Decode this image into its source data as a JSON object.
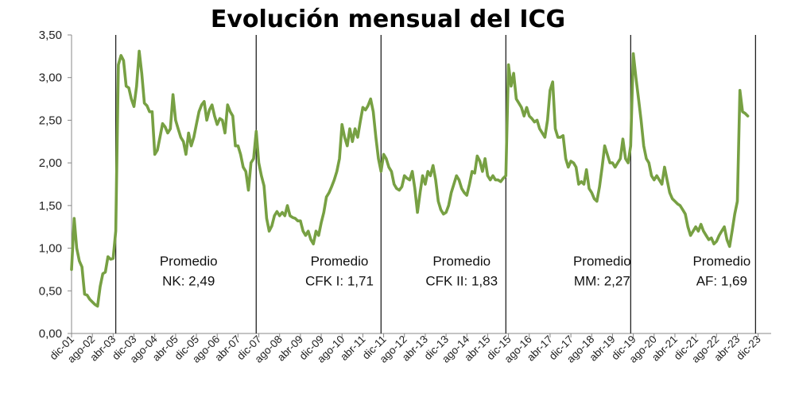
{
  "chart_data": {
    "type": "line",
    "title": "Evolución mensual del ICG",
    "xlabel": "",
    "ylabel": "",
    "ylim": [
      0,
      3.5
    ],
    "grid": false,
    "line_color": "#77a043",
    "divider_color": "#222222",
    "y_ticks": [
      "0,00",
      "0,50",
      "1,00",
      "1,50",
      "2,00",
      "2,50",
      "3,00",
      "3,50"
    ],
    "y_tick_values": [
      0,
      0.5,
      1,
      1.5,
      2,
      2.5,
      3,
      3.5
    ],
    "x_ticks": [
      {
        "label": "dic-01",
        "index": 0
      },
      {
        "label": "ago-02",
        "index": 8
      },
      {
        "label": "abr-03",
        "index": 16
      },
      {
        "label": "dic-03",
        "index": 24
      },
      {
        "label": "ago-04",
        "index": 32
      },
      {
        "label": "abr-05",
        "index": 40
      },
      {
        "label": "dic-05",
        "index": 48
      },
      {
        "label": "ago-06",
        "index": 56
      },
      {
        "label": "abr-07",
        "index": 64
      },
      {
        "label": "dic-07",
        "index": 72
      },
      {
        "label": "ago-08",
        "index": 80
      },
      {
        "label": "abr-09",
        "index": 88
      },
      {
        "label": "dic-09",
        "index": 96
      },
      {
        "label": "ago-10",
        "index": 104
      },
      {
        "label": "abr-11",
        "index": 112
      },
      {
        "label": "dic-11",
        "index": 120
      },
      {
        "label": "ago-12",
        "index": 128
      },
      {
        "label": "abr-13",
        "index": 136
      },
      {
        "label": "dic-13",
        "index": 144
      },
      {
        "label": "ago-14",
        "index": 152
      },
      {
        "label": "abr-15",
        "index": 160
      },
      {
        "label": "dic-15",
        "index": 168
      },
      {
        "label": "ago-16",
        "index": 176
      },
      {
        "label": "abr-17",
        "index": 184
      },
      {
        "label": "dic-17",
        "index": 192
      },
      {
        "label": "ago-18",
        "index": 200
      },
      {
        "label": "abr-19",
        "index": 208
      },
      {
        "label": "dic-19",
        "index": 216
      },
      {
        "label": "ago-20",
        "index": 224
      },
      {
        "label": "abr-21",
        "index": 232
      },
      {
        "label": "dic-21",
        "index": 240
      },
      {
        "label": "ago-22",
        "index": 248
      },
      {
        "label": "abr-23",
        "index": 256
      },
      {
        "label": "dic-23",
        "index": 264
      }
    ],
    "x_max_index": 269,
    "dividers": [
      17,
      71,
      119,
      167,
      215,
      263
    ],
    "annotations": [
      {
        "line1": "Promedio",
        "line2": "NK: 2,49",
        "center_index": 45
      },
      {
        "line1": "Promedio",
        "line2": "CFK I: 1,71",
        "center_index": 103
      },
      {
        "line1": "Promedio",
        "line2": "CFK II: 1,83",
        "center_index": 150
      },
      {
        "line1": "Promedio",
        "line2": "MM: 2,27",
        "center_index": 204
      },
      {
        "line1": "Promedio",
        "line2": "AF: 1,69",
        "center_index": 250
      }
    ],
    "annotation_y": [
      0.85,
      0.62
    ],
    "series": [
      {
        "name": "ICG",
        "points": [
          [
            0,
            0.75
          ],
          [
            1,
            1.35
          ],
          [
            2,
            1.0
          ],
          [
            3,
            0.85
          ],
          [
            4,
            0.78
          ],
          [
            5,
            0.46
          ],
          [
            6,
            0.45
          ],
          [
            7,
            0.4
          ],
          [
            8,
            0.37
          ],
          [
            9,
            0.34
          ],
          [
            10,
            0.32
          ],
          [
            11,
            0.55
          ],
          [
            12,
            0.7
          ],
          [
            13,
            0.72
          ],
          [
            14,
            0.9
          ],
          [
            15,
            0.87
          ],
          [
            16,
            0.88
          ],
          [
            17,
            1.2
          ],
          [
            18,
            3.15
          ],
          [
            19,
            3.26
          ],
          [
            20,
            3.2
          ],
          [
            21,
            2.9
          ],
          [
            22,
            2.88
          ],
          [
            23,
            2.75
          ],
          [
            24,
            2.66
          ],
          [
            25,
            2.9
          ],
          [
            26,
            3.31
          ],
          [
            27,
            3.05
          ],
          [
            28,
            2.7
          ],
          [
            29,
            2.67
          ],
          [
            30,
            2.6
          ],
          [
            31,
            2.6
          ],
          [
            32,
            2.1
          ],
          [
            33,
            2.15
          ],
          [
            34,
            2.3
          ],
          [
            35,
            2.46
          ],
          [
            36,
            2.42
          ],
          [
            37,
            2.35
          ],
          [
            38,
            2.4
          ],
          [
            39,
            2.8
          ],
          [
            40,
            2.5
          ],
          [
            41,
            2.4
          ],
          [
            42,
            2.3
          ],
          [
            43,
            2.25
          ],
          [
            44,
            2.1
          ],
          [
            45,
            2.35
          ],
          [
            46,
            2.2
          ],
          [
            47,
            2.3
          ],
          [
            48,
            2.45
          ],
          [
            49,
            2.6
          ],
          [
            50,
            2.68
          ],
          [
            51,
            2.72
          ],
          [
            52,
            2.5
          ],
          [
            53,
            2.62
          ],
          [
            54,
            2.68
          ],
          [
            55,
            2.55
          ],
          [
            56,
            2.45
          ],
          [
            57,
            2.52
          ],
          [
            58,
            2.5
          ],
          [
            59,
            2.35
          ],
          [
            60,
            2.68
          ],
          [
            61,
            2.6
          ],
          [
            62,
            2.55
          ],
          [
            63,
            2.2
          ],
          [
            64,
            2.2
          ],
          [
            65,
            2.1
          ],
          [
            66,
            1.95
          ],
          [
            67,
            1.9
          ],
          [
            68,
            1.68
          ],
          [
            69,
            2.0
          ],
          [
            70,
            2.05
          ],
          [
            71,
            2.37
          ],
          [
            72,
            2.0
          ],
          [
            73,
            1.85
          ],
          [
            74,
            1.73
          ],
          [
            75,
            1.35
          ],
          [
            76,
            1.2
          ],
          [
            77,
            1.26
          ],
          [
            78,
            1.38
          ],
          [
            79,
            1.43
          ],
          [
            80,
            1.38
          ],
          [
            81,
            1.42
          ],
          [
            82,
            1.38
          ],
          [
            83,
            1.5
          ],
          [
            84,
            1.38
          ],
          [
            85,
            1.36
          ],
          [
            86,
            1.35
          ],
          [
            87,
            1.32
          ],
          [
            88,
            1.32
          ],
          [
            89,
            1.2
          ],
          [
            90,
            1.15
          ],
          [
            91,
            1.2
          ],
          [
            92,
            1.1
          ],
          [
            93,
            1.05
          ],
          [
            94,
            1.2
          ],
          [
            95,
            1.15
          ],
          [
            96,
            1.3
          ],
          [
            97,
            1.42
          ],
          [
            98,
            1.6
          ],
          [
            99,
            1.65
          ],
          [
            100,
            1.72
          ],
          [
            101,
            1.8
          ],
          [
            102,
            1.9
          ],
          [
            103,
            2.05
          ],
          [
            104,
            2.45
          ],
          [
            105,
            2.3
          ],
          [
            106,
            2.2
          ],
          [
            107,
            2.4
          ],
          [
            108,
            2.25
          ],
          [
            109,
            2.4
          ],
          [
            110,
            2.3
          ],
          [
            111,
            2.48
          ],
          [
            112,
            2.65
          ],
          [
            113,
            2.62
          ],
          [
            114,
            2.67
          ],
          [
            115,
            2.75
          ],
          [
            116,
            2.6
          ],
          [
            117,
            2.3
          ],
          [
            118,
            2.05
          ],
          [
            119,
            1.9
          ],
          [
            120,
            2.1
          ],
          [
            121,
            2.05
          ],
          [
            122,
            1.95
          ],
          [
            123,
            1.9
          ],
          [
            124,
            1.75
          ],
          [
            125,
            1.7
          ],
          [
            126,
            1.68
          ],
          [
            127,
            1.72
          ],
          [
            128,
            1.85
          ],
          [
            129,
            1.82
          ],
          [
            130,
            1.8
          ],
          [
            131,
            1.9
          ],
          [
            132,
            1.7
          ],
          [
            133,
            1.42
          ],
          [
            134,
            1.65
          ],
          [
            135,
            1.85
          ],
          [
            136,
            1.75
          ],
          [
            137,
            1.9
          ],
          [
            138,
            1.85
          ],
          [
            139,
            1.97
          ],
          [
            140,
            1.8
          ],
          [
            141,
            1.55
          ],
          [
            142,
            1.45
          ],
          [
            143,
            1.4
          ],
          [
            144,
            1.42
          ],
          [
            145,
            1.5
          ],
          [
            146,
            1.65
          ],
          [
            147,
            1.75
          ],
          [
            148,
            1.85
          ],
          [
            149,
            1.8
          ],
          [
            150,
            1.7
          ],
          [
            151,
            1.65
          ],
          [
            152,
            1.62
          ],
          [
            153,
            1.75
          ],
          [
            154,
            1.9
          ],
          [
            155,
            1.88
          ],
          [
            156,
            2.08
          ],
          [
            157,
            2.02
          ],
          [
            158,
            1.9
          ],
          [
            159,
            2.05
          ],
          [
            160,
            1.85
          ],
          [
            161,
            1.8
          ],
          [
            162,
            1.85
          ],
          [
            163,
            1.8
          ],
          [
            164,
            1.8
          ],
          [
            165,
            1.78
          ],
          [
            166,
            1.82
          ],
          [
            167,
            1.85
          ],
          [
            168,
            3.15
          ],
          [
            169,
            2.9
          ],
          [
            170,
            3.05
          ],
          [
            171,
            2.75
          ],
          [
            172,
            2.7
          ],
          [
            173,
            2.65
          ],
          [
            174,
            2.55
          ],
          [
            175,
            2.65
          ],
          [
            176,
            2.55
          ],
          [
            177,
            2.52
          ],
          [
            178,
            2.48
          ],
          [
            179,
            2.5
          ],
          [
            180,
            2.4
          ],
          [
            181,
            2.35
          ],
          [
            182,
            2.3
          ],
          [
            183,
            2.5
          ],
          [
            184,
            2.85
          ],
          [
            185,
            2.95
          ],
          [
            186,
            2.4
          ],
          [
            187,
            2.3
          ],
          [
            188,
            2.3
          ],
          [
            189,
            2.32
          ],
          [
            190,
            2.05
          ],
          [
            191,
            1.95
          ],
          [
            192,
            2.02
          ],
          [
            193,
            2.0
          ],
          [
            194,
            1.95
          ],
          [
            195,
            1.75
          ],
          [
            196,
            1.78
          ],
          [
            197,
            1.75
          ],
          [
            198,
            1.92
          ],
          [
            199,
            1.7
          ],
          [
            200,
            1.65
          ],
          [
            201,
            1.58
          ],
          [
            202,
            1.55
          ],
          [
            203,
            1.72
          ],
          [
            204,
            1.95
          ],
          [
            205,
            2.2
          ],
          [
            206,
            2.1
          ],
          [
            207,
            2.0
          ],
          [
            208,
            2.0
          ],
          [
            209,
            1.95
          ],
          [
            210,
            2.0
          ],
          [
            211,
            2.05
          ],
          [
            212,
            2.28
          ],
          [
            213,
            2.05
          ],
          [
            214,
            2.0
          ],
          [
            215,
            2.2
          ],
          [
            216,
            3.28
          ],
          [
            217,
            3.0
          ],
          [
            218,
            2.75
          ],
          [
            219,
            2.5
          ],
          [
            220,
            2.2
          ],
          [
            221,
            2.05
          ],
          [
            222,
            2.0
          ],
          [
            223,
            1.85
          ],
          [
            224,
            1.8
          ],
          [
            225,
            1.85
          ],
          [
            226,
            1.8
          ],
          [
            227,
            1.75
          ],
          [
            228,
            1.95
          ],
          [
            229,
            1.8
          ],
          [
            230,
            1.65
          ],
          [
            231,
            1.58
          ],
          [
            232,
            1.55
          ],
          [
            233,
            1.52
          ],
          [
            234,
            1.5
          ],
          [
            235,
            1.45
          ],
          [
            236,
            1.4
          ],
          [
            237,
            1.25
          ],
          [
            238,
            1.15
          ],
          [
            239,
            1.2
          ],
          [
            240,
            1.25
          ],
          [
            241,
            1.2
          ],
          [
            242,
            1.28
          ],
          [
            243,
            1.2
          ],
          [
            244,
            1.15
          ],
          [
            245,
            1.1
          ],
          [
            246,
            1.12
          ],
          [
            247,
            1.05
          ],
          [
            248,
            1.08
          ],
          [
            249,
            1.15
          ],
          [
            250,
            1.2
          ],
          [
            251,
            1.25
          ],
          [
            252,
            1.1
          ],
          [
            253,
            1.02
          ],
          [
            254,
            1.2
          ],
          [
            255,
            1.4
          ],
          [
            256,
            1.55
          ],
          [
            257,
            2.85
          ],
          [
            258,
            2.6
          ],
          [
            259,
            2.58
          ],
          [
            260,
            2.55
          ]
        ]
      }
    ]
  }
}
